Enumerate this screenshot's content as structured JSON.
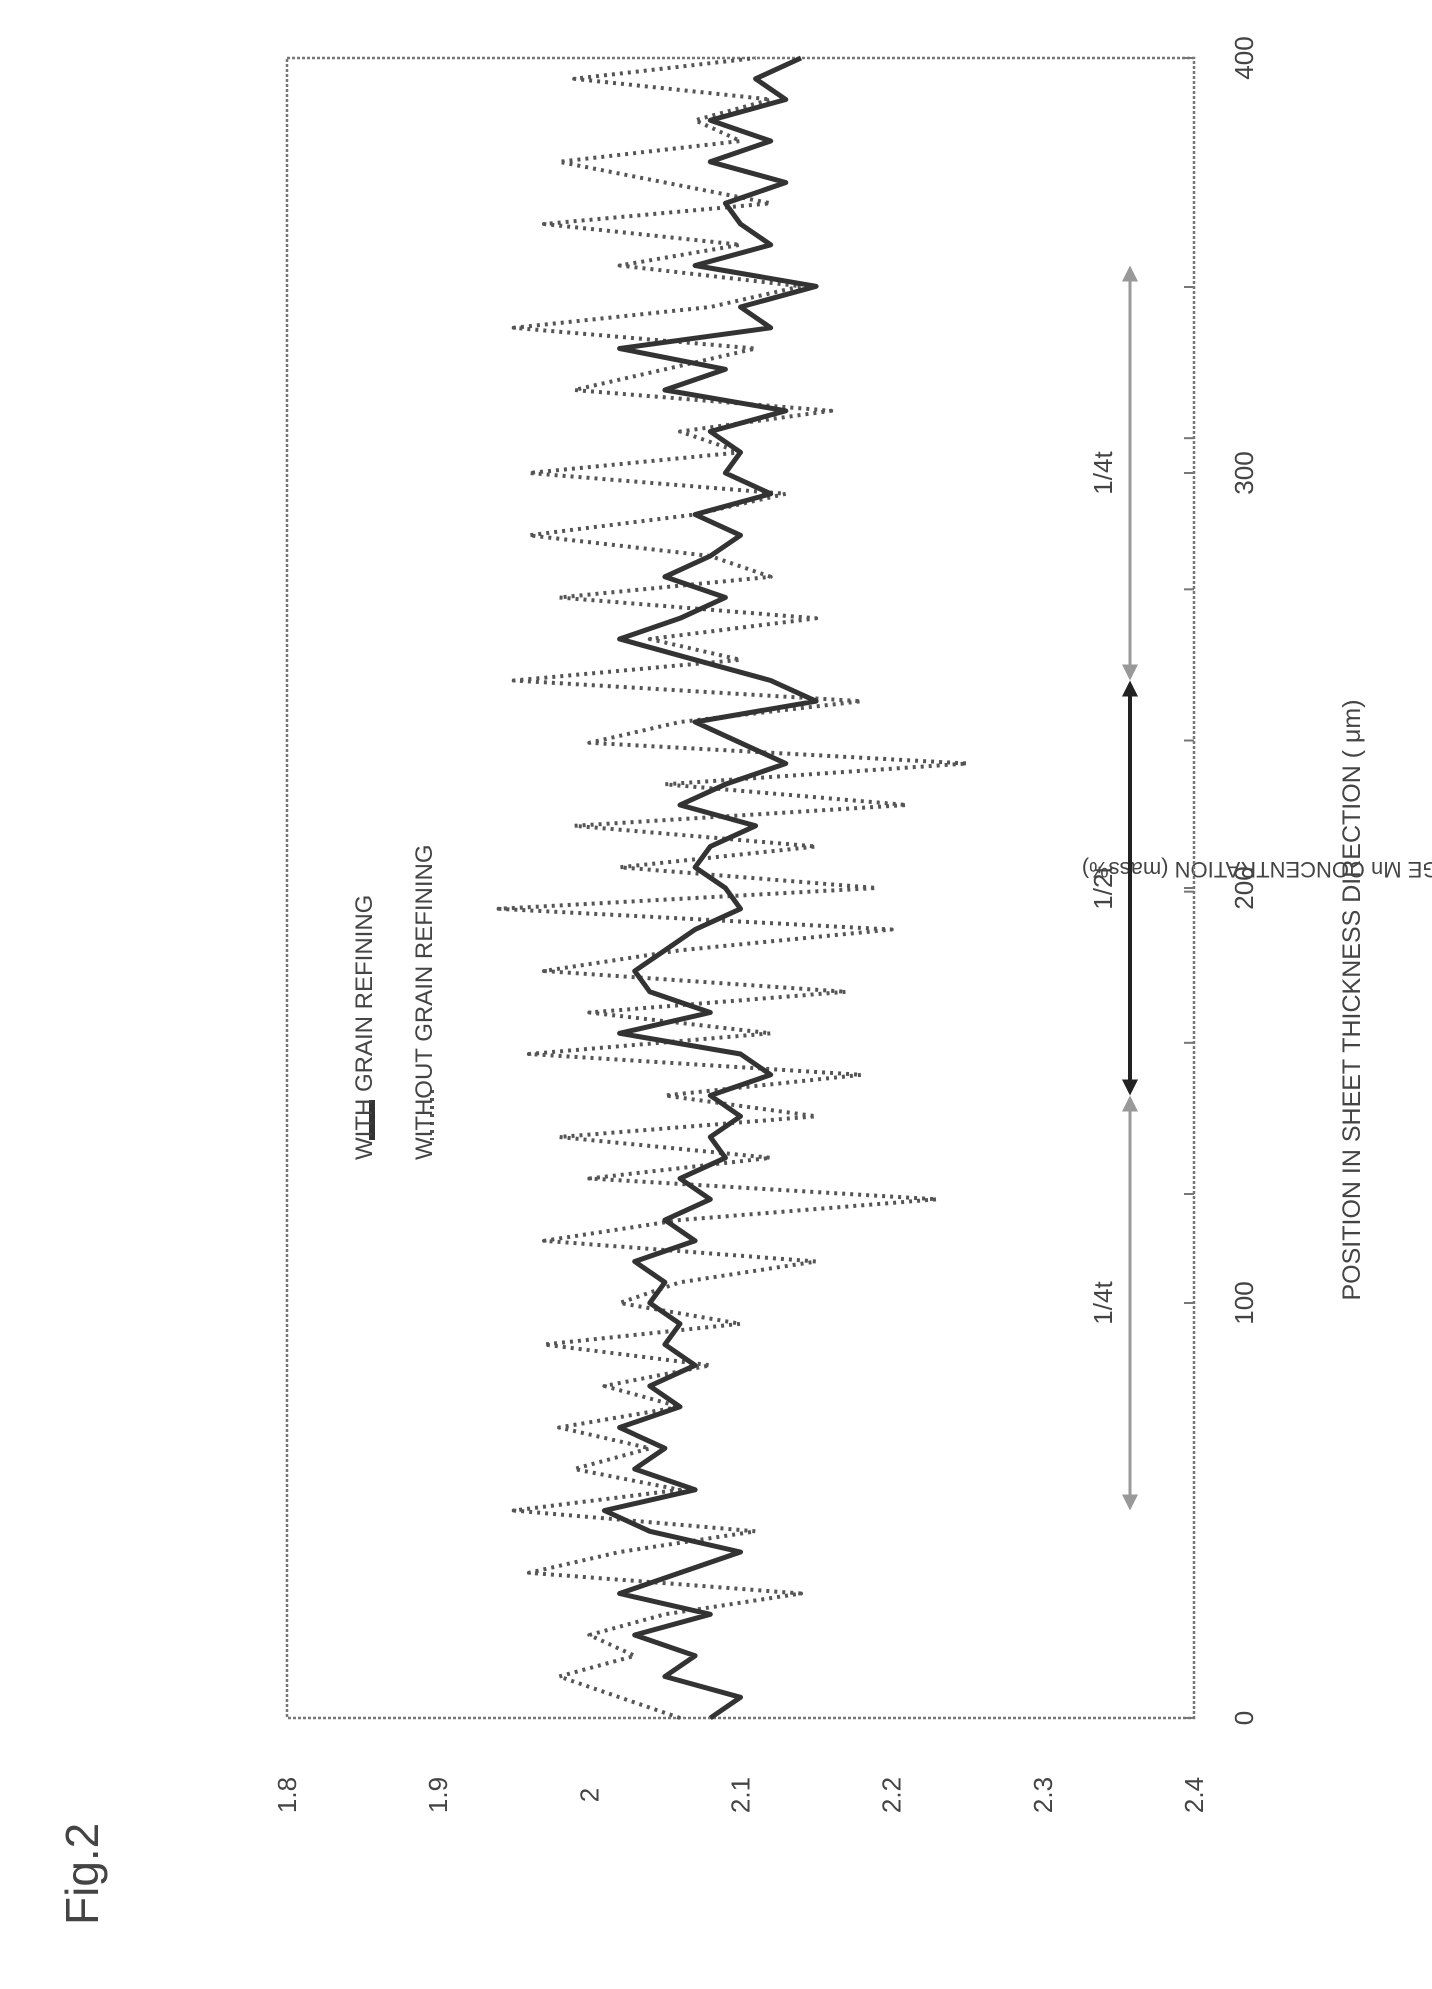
{
  "figure_label": "Fig.2",
  "chart_data": {
    "type": "line",
    "xlabel": "POSITION IN SHEET THICKNESS DIRECTION ( μm)",
    "ylabel": "ROLLING-DIRECTION AVERAGE Mn CONCENTRATION (mass%)",
    "xlim": [
      0,
      400
    ],
    "ylim": [
      1.8,
      2.4
    ],
    "x_ticks": [
      "0",
      "100",
      "200",
      "300",
      "400"
    ],
    "y_ticks": [
      "1.8",
      "1.9",
      "2",
      "2.1",
      "2.2",
      "2.3",
      "2.4"
    ],
    "grid": false,
    "legend_position": "top-right",
    "legend": [
      "WITH GRAIN REFINING",
      "WITHOUT GRAIN REFINING"
    ],
    "series": [
      {
        "name": "WITH GRAIN REFINING",
        "style": "solid",
        "color": "#333333",
        "x": [
          0,
          5,
          10,
          15,
          20,
          25,
          30,
          35,
          40,
          45,
          50,
          55,
          60,
          65,
          70,
          75,
          80,
          85,
          90,
          95,
          100,
          105,
          110,
          115,
          120,
          125,
          130,
          135,
          140,
          145,
          150,
          155,
          160,
          165,
          170,
          175,
          180,
          185,
          190,
          195,
          200,
          205,
          210,
          215,
          220,
          225,
          230,
          235,
          240,
          245,
          250,
          255,
          260,
          265,
          270,
          275,
          280,
          285,
          290,
          295,
          300,
          305,
          310,
          315,
          320,
          325,
          330,
          335,
          340,
          345,
          350,
          355,
          360,
          365,
          370,
          375,
          380,
          385,
          390,
          395,
          400
        ],
        "values": [
          2.08,
          2.1,
          2.05,
          2.07,
          2.03,
          2.08,
          2.02,
          2.06,
          2.1,
          2.04,
          2.01,
          2.07,
          2.03,
          2.05,
          2.02,
          2.06,
          2.04,
          2.07,
          2.05,
          2.06,
          2.04,
          2.05,
          2.03,
          2.07,
          2.05,
          2.08,
          2.06,
          2.09,
          2.08,
          2.1,
          2.08,
          2.12,
          2.1,
          2.02,
          2.08,
          2.04,
          2.03,
          2.05,
          2.07,
          2.1,
          2.09,
          2.07,
          2.08,
          2.11,
          2.06,
          2.09,
          2.13,
          2.1,
          2.07,
          2.15,
          2.12,
          2.07,
          2.02,
          2.06,
          2.09,
          2.05,
          2.08,
          2.1,
          2.07,
          2.12,
          2.09,
          2.1,
          2.08,
          2.13,
          2.05,
          2.09,
          2.02,
          2.12,
          2.1,
          2.15,
          2.07,
          2.12,
          2.1,
          2.09,
          2.13,
          2.08,
          2.12,
          2.08,
          2.13,
          2.11,
          2.14
        ]
      },
      {
        "name": "WITHOUT GRAIN REFINING",
        "style": "dotted",
        "color": "#555555",
        "x": [
          0,
          5,
          10,
          15,
          20,
          25,
          30,
          35,
          40,
          45,
          50,
          55,
          60,
          65,
          70,
          75,
          80,
          85,
          90,
          95,
          100,
          105,
          110,
          115,
          120,
          125,
          130,
          135,
          140,
          145,
          150,
          155,
          160,
          165,
          170,
          175,
          180,
          185,
          190,
          195,
          200,
          205,
          210,
          215,
          220,
          225,
          230,
          235,
          240,
          245,
          250,
          255,
          260,
          265,
          270,
          275,
          280,
          285,
          290,
          295,
          300,
          305,
          310,
          315,
          320,
          325,
          330,
          335,
          340,
          345,
          350,
          355,
          360,
          365,
          370,
          375,
          380,
          385,
          390,
          395,
          400
        ],
        "values": [
          2.06,
          2.02,
          1.98,
          2.03,
          2.0,
          2.05,
          2.14,
          1.96,
          2.02,
          2.11,
          1.95,
          2.06,
          1.99,
          2.04,
          1.98,
          2.06,
          2.01,
          2.08,
          1.97,
          2.1,
          2.02,
          2.06,
          2.15,
          1.97,
          2.06,
          2.23,
          2.0,
          2.12,
          1.98,
          2.15,
          2.05,
          2.18,
          1.96,
          2.12,
          2.0,
          2.17,
          1.97,
          2.06,
          2.2,
          1.94,
          2.19,
          2.02,
          2.15,
          1.99,
          2.21,
          2.05,
          2.25,
          2.0,
          2.06,
          2.18,
          1.95,
          2.1,
          2.04,
          2.15,
          1.98,
          2.12,
          2.08,
          1.96,
          2.07,
          2.13,
          1.96,
          2.1,
          2.06,
          2.16,
          1.99,
          2.05,
          2.11,
          1.95,
          2.08,
          2.14,
          2.02,
          2.1,
          1.97,
          2.12,
          2.05,
          1.98,
          2.1,
          2.07,
          2.12,
          1.99,
          2.11
        ]
      }
    ],
    "annotations": [
      {
        "text": "1/4t",
        "x_range": [
          50,
          150
        ]
      },
      {
        "text": "1/2t",
        "x_range": [
          150,
          250
        ]
      },
      {
        "text": "1/4t",
        "x_range": [
          250,
          350
        ]
      }
    ]
  }
}
